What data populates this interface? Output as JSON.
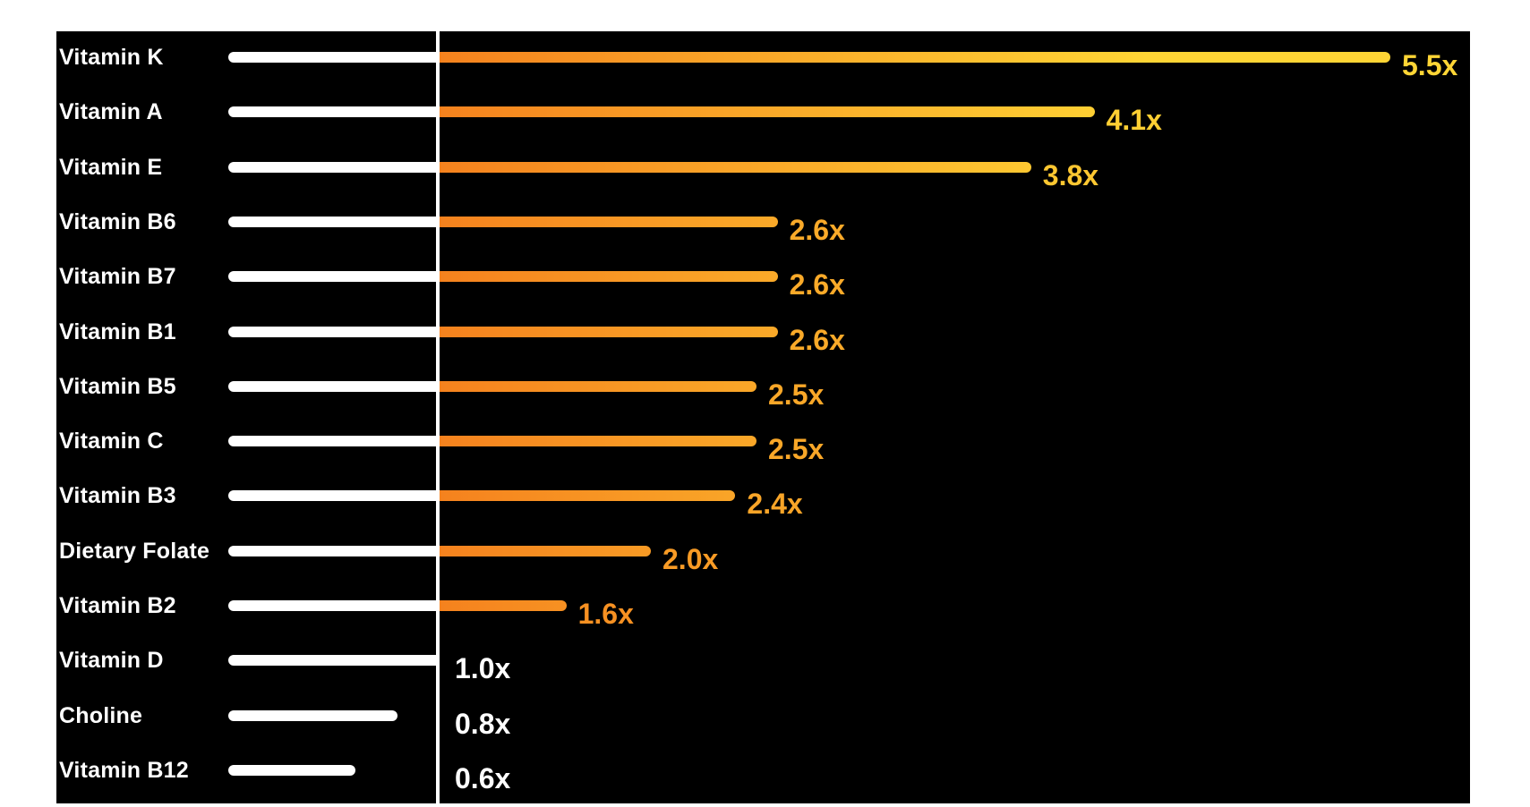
{
  "chart_data": {
    "type": "bar",
    "orientation": "horizontal",
    "title": "",
    "categories": [
      "Vitamin K",
      "Vitamin A",
      "Vitamin E",
      "Vitamin B6",
      "Vitamin B7",
      "Vitamin B1",
      "Vitamin B5",
      "Vitamin C",
      "Vitamin B3",
      "Dietary Folate",
      "Vitamin B2",
      "Vitamin D",
      "Choline",
      "Vitamin B12"
    ],
    "values": [
      5.5,
      4.1,
      3.8,
      2.6,
      2.6,
      2.6,
      2.5,
      2.5,
      2.4,
      2.0,
      1.6,
      1.0,
      0.8,
      0.6
    ],
    "value_labels": [
      "5.5x",
      "4.1x",
      "3.8x",
      "2.6x",
      "2.6x",
      "2.6x",
      "2.5x",
      "2.5x",
      "2.4x",
      "2.0x",
      "1.6x",
      "1.0x",
      "0.8x",
      "0.6x"
    ],
    "baseline": {
      "value": 1.0,
      "shown_as": "vertical-white-line"
    },
    "xlim": [
      0,
      6.15
    ],
    "grid": false,
    "legend": "none",
    "colors": {
      "page_background": "#FFFFFF",
      "panel_background": "#000000",
      "category_text": "#FFFFFF",
      "below_baseline_bar": "#FFFFFF",
      "baseline_line": "#FFFFFF",
      "gradient_start": "#F5821E",
      "gradient_end": "#FFD535",
      "value_text_at_or_below_baseline": "#FFFFFF"
    }
  }
}
